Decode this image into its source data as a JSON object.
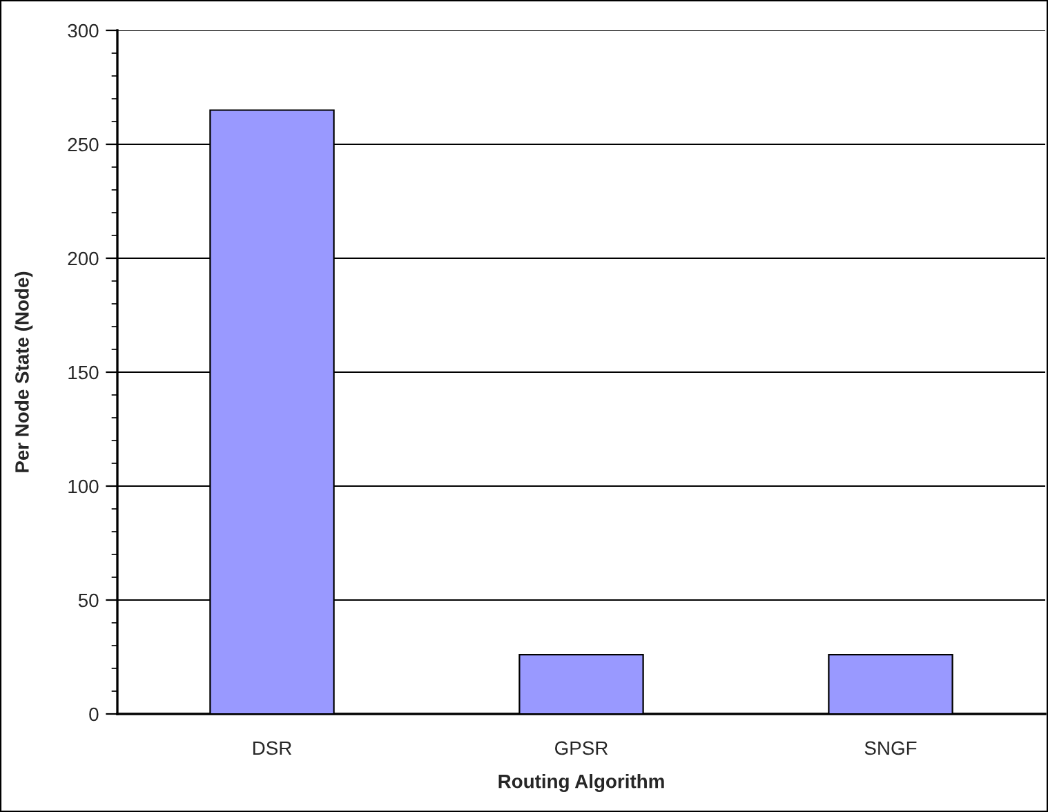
{
  "chart_data": {
    "type": "bar",
    "xlabel": "Routing Algorithm",
    "ylabel": "Per Node State (Node)",
    "categories": [
      "DSR",
      "GPSR",
      "SNGF"
    ],
    "values": [
      265,
      26,
      26
    ],
    "color": "#9999ff",
    "ylim": [
      0,
      300
    ],
    "yticks": [
      0,
      {
        "value": 10,
        "label": null
      },
      {
        "value": 20,
        "label": null
      },
      {
        "value": 30,
        "label": null
      },
      {
        "value": 40,
        "label": null
      },
      50,
      {
        "value": 60,
        "label": null
      },
      {
        "value": 70,
        "label": null
      },
      {
        "value": 80,
        "label": null
      },
      {
        "value": 90,
        "label": null
      },
      100,
      {
        "value": 110,
        "label": null
      },
      {
        "value": 120,
        "label": null
      },
      {
        "value": 130,
        "label": null
      },
      {
        "value": 140,
        "label": null
      },
      150,
      {
        "value": 160,
        "label": null
      },
      {
        "value": 170,
        "label": null
      },
      {
        "value": 180,
        "label": null
      },
      {
        "value": 190,
        "label": null
      },
      200,
      {
        "value": 210,
        "label": null
      },
      {
        "value": 220,
        "label": null
      },
      {
        "value": 230,
        "label": null
      },
      {
        "value": 240,
        "label": null
      },
      250,
      {
        "value": 260,
        "label": null
      },
      {
        "value": 270,
        "label": null
      },
      {
        "value": 280,
        "label": null
      },
      {
        "value": 290,
        "label": null
      },
      300
    ],
    "grid": "y"
  }
}
